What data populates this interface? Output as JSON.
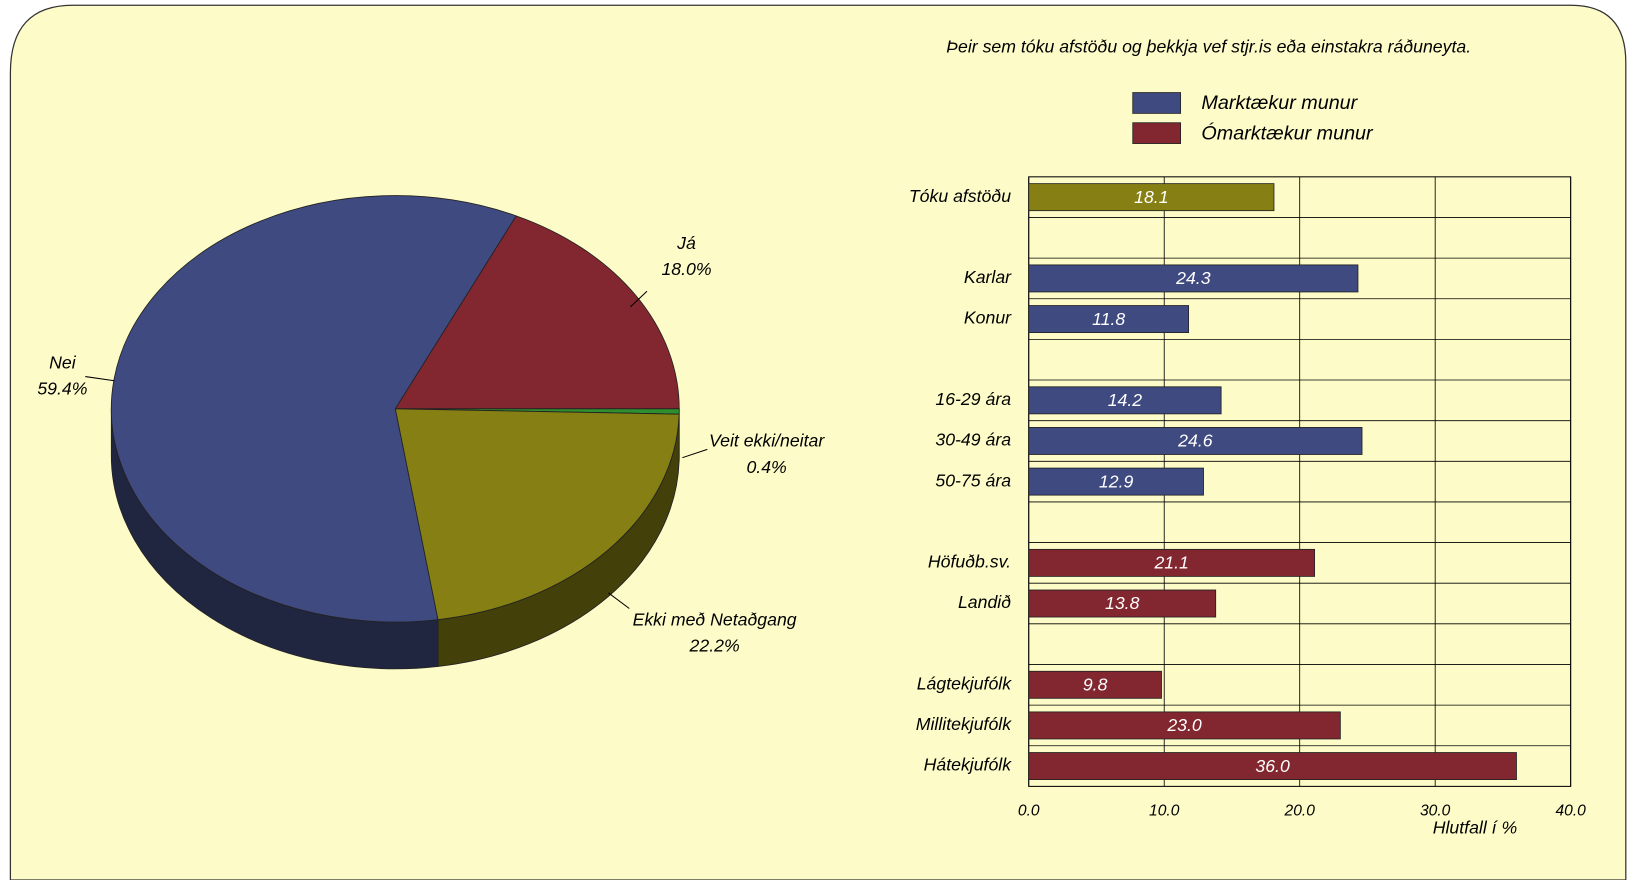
{
  "chart_data": [
    {
      "type": "pie",
      "labels": [
        "Já",
        "Veit ekki/neitar",
        "Ekki með Netaðgang",
        "Nei"
      ],
      "values": [
        18.0,
        0.4,
        22.2,
        59.4
      ],
      "value_labels": [
        "18.0%",
        "0.4%",
        "22.2%",
        "59.4%"
      ],
      "colors": [
        "#82272f",
        "#2f8f2f",
        "#857f14",
        "#3f4a80"
      ]
    },
    {
      "type": "barh",
      "title": "Þeir sem tóku afstöðu og þekkja vef stjr.is eða einstakra ráðuneyta.",
      "legend": [
        {
          "name": "Marktækur munur",
          "color": "#3f4a80"
        },
        {
          "name": "Ómarktækur munur",
          "color": "#82272f"
        }
      ],
      "categories": [
        "Tóku afstöðu",
        null,
        "Karlar",
        "Konur",
        null,
        "16-29 ára",
        "30-49 ára",
        "50-75 ára",
        null,
        "Höfuðb.sv.",
        "Landið",
        null,
        "Lágtekjufólk",
        "Millitekjufólk",
        "Hátekjufólk"
      ],
      "values": [
        18.1,
        null,
        24.3,
        11.8,
        null,
        14.2,
        24.6,
        12.9,
        null,
        21.1,
        13.8,
        null,
        9.8,
        23.0,
        36.0
      ],
      "value_labels": [
        "18.1",
        null,
        "24.3",
        "11.8",
        null,
        "14.2",
        "24.6",
        "12.9",
        null,
        "21.1",
        "13.8",
        null,
        "9.8",
        "23.0",
        "36.0"
      ],
      "colors": [
        "#857f14",
        null,
        "#3f4a80",
        "#3f4a80",
        null,
        "#3f4a80",
        "#3f4a80",
        "#3f4a80",
        null,
        "#82272f",
        "#82272f",
        null,
        "#82272f",
        "#82272f",
        "#82272f"
      ],
      "xlim": [
        0,
        40
      ],
      "xticks": [
        {
          "value": 0,
          "label": "0.0"
        },
        {
          "value": 10,
          "label": "10.0"
        },
        {
          "value": 20,
          "label": "20.0"
        },
        {
          "value": 30,
          "label": "30.0"
        },
        {
          "value": 40,
          "label": "40.0"
        }
      ],
      "xlabel": "Hlutfall í %",
      "grid": true
    }
  ]
}
